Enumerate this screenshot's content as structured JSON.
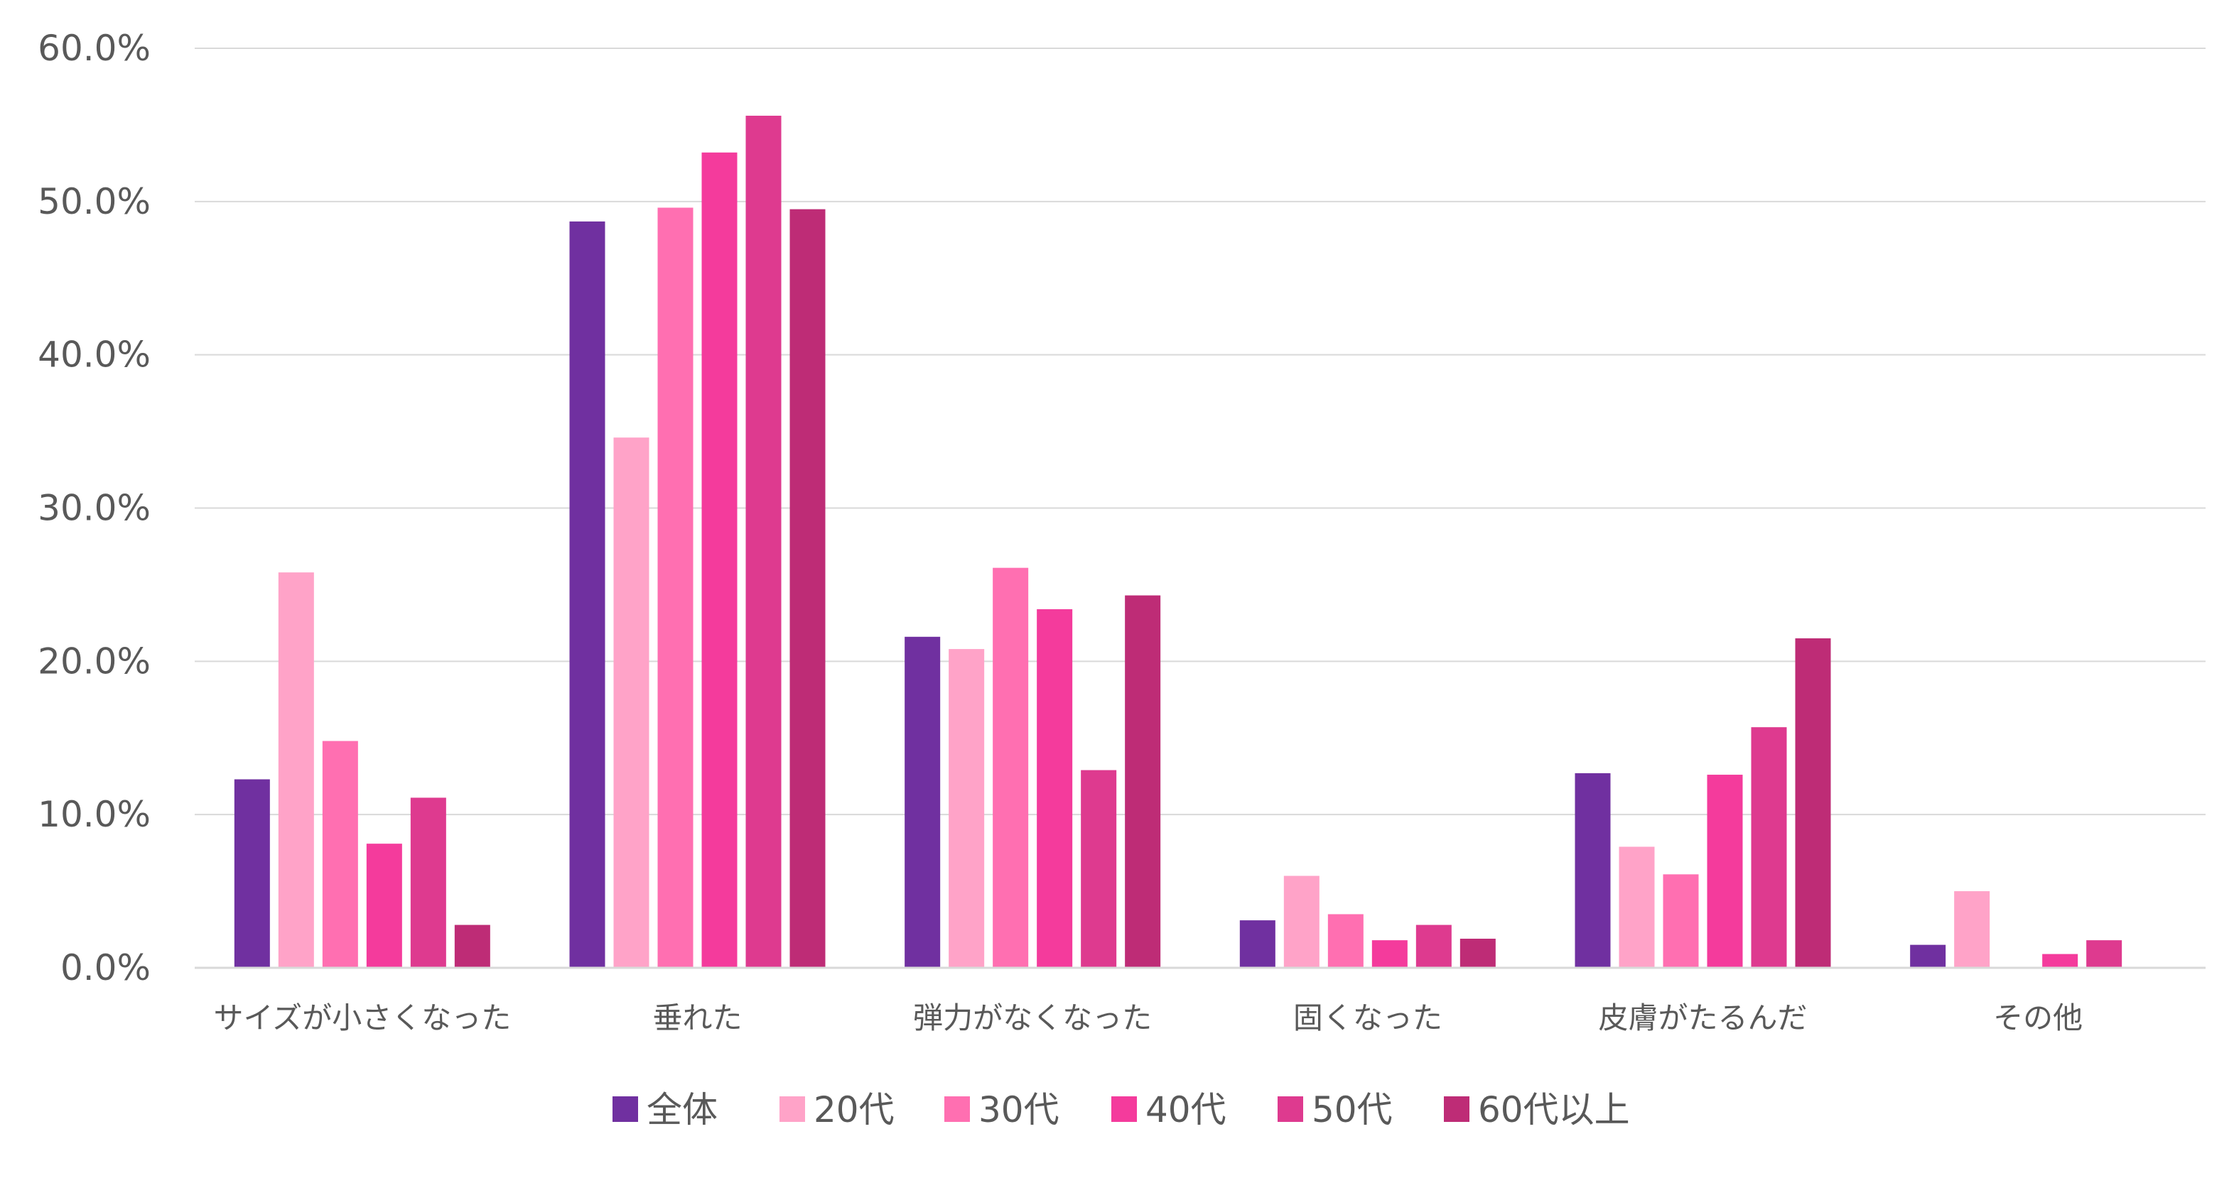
{
  "chart_data": {
    "type": "bar",
    "categories": [
      "サイズが小さくなった",
      "垂れた",
      "弾力がなくなった",
      "固くなった",
      "皮膚がたるんだ",
      "その他"
    ],
    "series": [
      {
        "name": "全体",
        "color": "#7030A0",
        "values": [
          12.3,
          48.7,
          21.6,
          3.1,
          12.7,
          1.5
        ]
      },
      {
        "name": "20代",
        "color": "#FFA3C8",
        "values": [
          25.8,
          34.6,
          20.8,
          6.0,
          7.9,
          5.0
        ]
      },
      {
        "name": "30代",
        "color": "#FF6FB1",
        "values": [
          14.8,
          49.6,
          26.1,
          3.5,
          6.1,
          0.0
        ]
      },
      {
        "name": "40代",
        "color": "#F43B9C",
        "values": [
          8.1,
          53.2,
          23.4,
          1.8,
          12.6,
          0.9
        ]
      },
      {
        "name": "50代",
        "color": "#DE3A8F",
        "values": [
          11.1,
          55.6,
          12.9,
          2.8,
          15.7,
          1.8
        ]
      },
      {
        "name": "60代以上",
        "color": "#BE2C76",
        "values": [
          2.8,
          49.5,
          24.3,
          1.9,
          21.5,
          0.0
        ]
      }
    ],
    "y_ticks": [
      "0.0%",
      "10.0%",
      "20.0%",
      "30.0%",
      "40.0%",
      "50.0%",
      "60.0%"
    ],
    "ylim": [
      0,
      60
    ],
    "grid": true,
    "legend_position": "bottom"
  }
}
